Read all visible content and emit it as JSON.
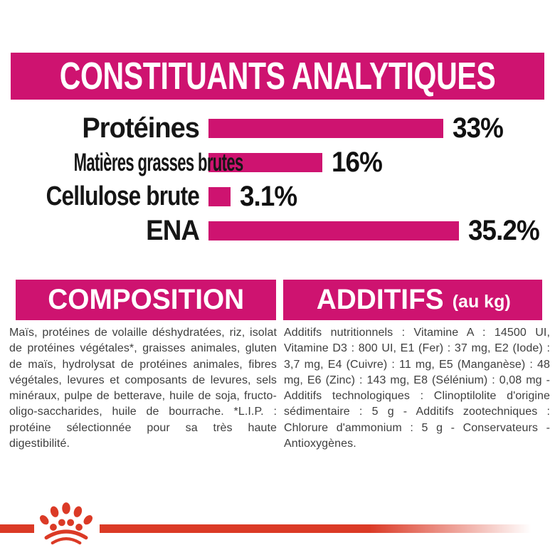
{
  "colors": {
    "magenta": "#CE1370",
    "red": "#DB3A26",
    "label_text": "#161616",
    "body_text": "#3e3e3e"
  },
  "header": {
    "title": "CONSTITUANTS ANALYTIQUES"
  },
  "chart_data": {
    "type": "bar",
    "orientation": "horizontal",
    "title": "CONSTITUANTS ANALYTIQUES",
    "categories": [
      "Protéines",
      "Matières grasses brutes",
      "Cellulose brute",
      "ENA"
    ],
    "values": [
      33,
      16,
      3.1,
      35.2
    ],
    "labels": [
      "33%",
      "16%",
      "3.1%",
      "35.2%"
    ],
    "unit": "%",
    "xlim": [
      0,
      36
    ],
    "bar_color": "#CE1370",
    "grid": false,
    "legend": "none"
  },
  "composition": {
    "title": "COMPOSITION",
    "body": "Maïs, protéines de volaille déshydratées, riz, isolat de protéines végétales*, graisses animales, gluten de maïs, hydrolysat de protéines animales, fibres végétales, levures et composants de levures, sels minéraux, pulpe de betterave, huile de soja, fructo-oligo-saccharides, huile de bourrache. *L.I.P. : protéine sélectionnée pour sa très haute digestibilité."
  },
  "additifs": {
    "title": "ADDITIFS",
    "title_suffix": "(au kg)",
    "body": "Additifs nutritionnels : Vitamine A : 14500 UI, Vitamine D3 : 800 UI, E1 (Fer) : 37 mg, E2 (Iode) : 3,7 mg, E4 (Cuivre) : 11 mg, E5 (Manganèse) : 48 mg, E6 (Zinc) : 143 mg, E8 (Sélénium) : 0,08 mg - Additifs technologiques : Clinoptilolite d'origine sédimentaire : 5 g - Additifs zootechniques : Chlorure d'ammonium : 5 g - Conservateurs - Antioxygènes."
  },
  "footer": {
    "logo": "royal-canin-crown-paw"
  }
}
